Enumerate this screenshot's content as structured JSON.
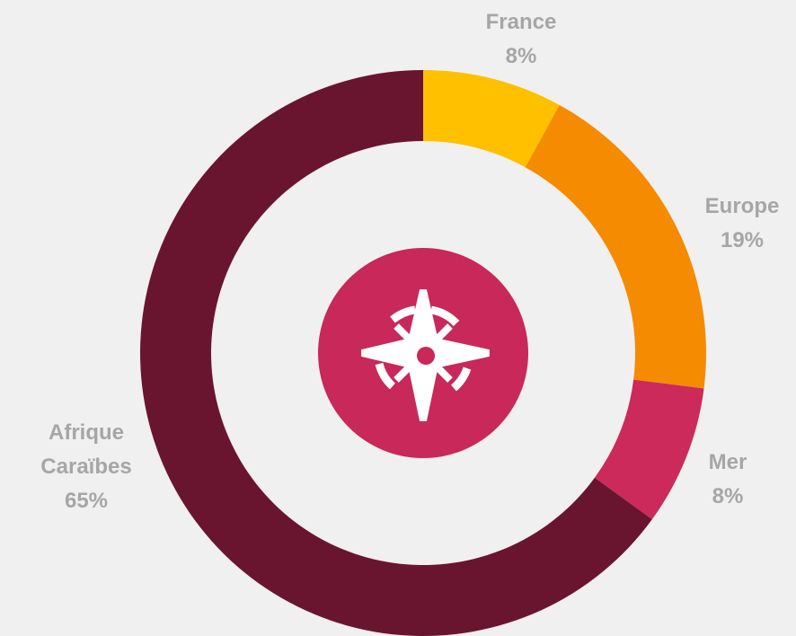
{
  "chart_data": {
    "type": "donut",
    "categories": [
      "France",
      "Europe",
      "Mer",
      "Afrique Caraïbes"
    ],
    "values": [
      8,
      19,
      8,
      65
    ],
    "value_labels": [
      "8%",
      "19%",
      "8%",
      "65%"
    ],
    "colors": [
      "#ffc000",
      "#f58b00",
      "#cc2a5a",
      "#6a1530"
    ]
  }
}
